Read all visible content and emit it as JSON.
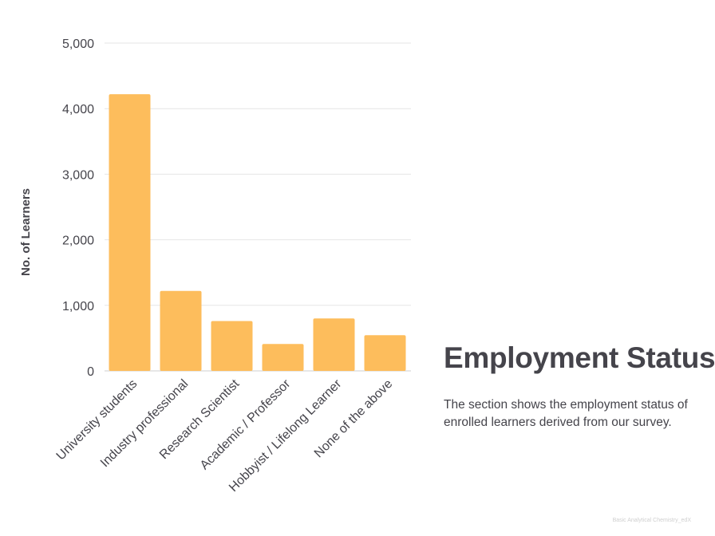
{
  "chart_data": {
    "type": "bar",
    "categories": [
      "University students",
      "Industry professional",
      "Research Scientist",
      "Academic / Professor",
      "Hobbyist / Lifelong Learner",
      "None of the above"
    ],
    "values": [
      4220,
      1220,
      760,
      410,
      800,
      545
    ],
    "ylabel": "No. of Learners",
    "xlabel": "",
    "ylim": [
      0,
      5000
    ],
    "yticks": [
      0,
      1000,
      2000,
      3000,
      4000,
      5000
    ],
    "ytick_labels": [
      "0",
      "1,000",
      "2,000",
      "3,000",
      "4,000",
      "5,000"
    ],
    "grid": true,
    "bar_color": "#fdbd5c"
  },
  "section": {
    "title": "Employment Status",
    "description": "The section shows the employment status of enrolled learners derived from our survey."
  },
  "footer": {
    "note": "Basic Analytical Chemistry_edX"
  }
}
